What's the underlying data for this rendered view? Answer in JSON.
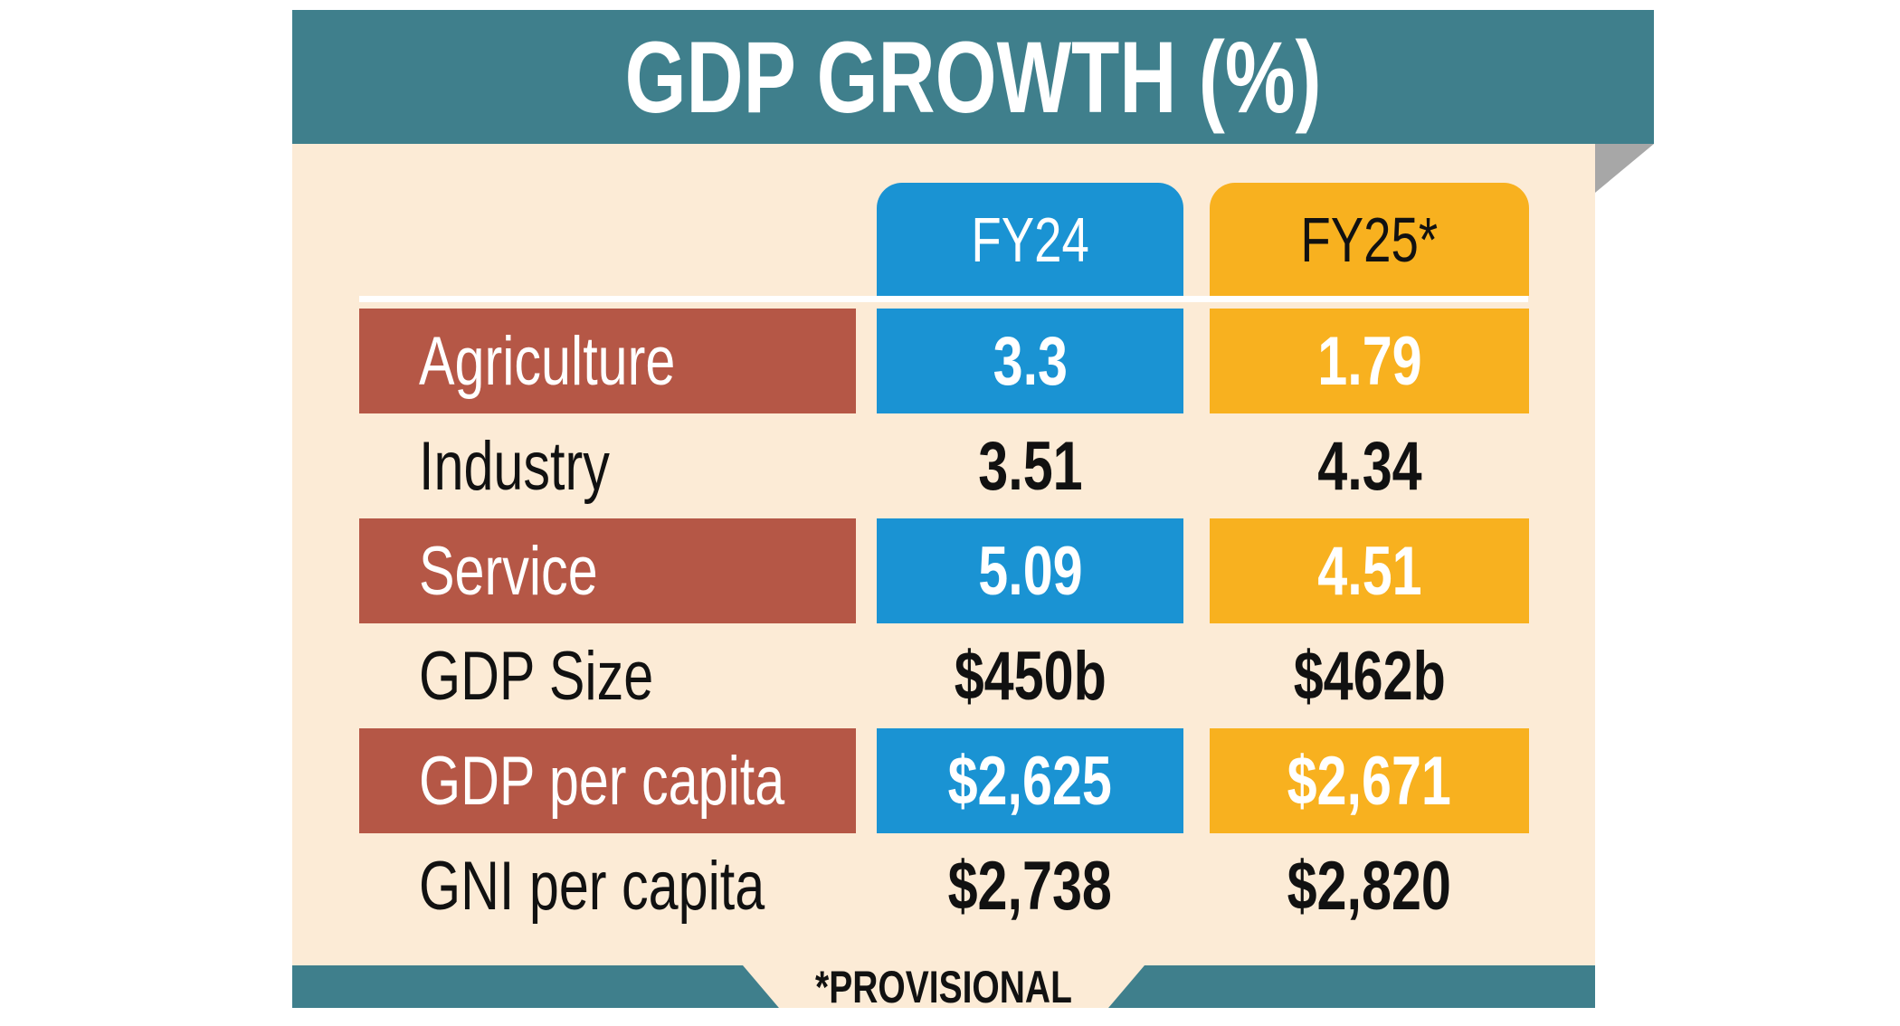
{
  "header": {
    "title": "GDP GROWTH (%)"
  },
  "table": {
    "columns": [
      "FY24",
      "FY25*"
    ],
    "rows": [
      [
        "Agriculture",
        "3.3",
        "1.79"
      ],
      [
        "Industry",
        "3.51",
        "4.34"
      ],
      [
        "Service",
        "5.09",
        "4.51"
      ],
      [
        "GDP Size",
        "$450b",
        "$462b"
      ],
      [
        "GDP per capita",
        "$2,625",
        "$2,671"
      ],
      [
        "GNI per capita",
        "$2,738",
        "$2,820"
      ]
    ]
  },
  "footnote": "*PROVISIONAL"
}
